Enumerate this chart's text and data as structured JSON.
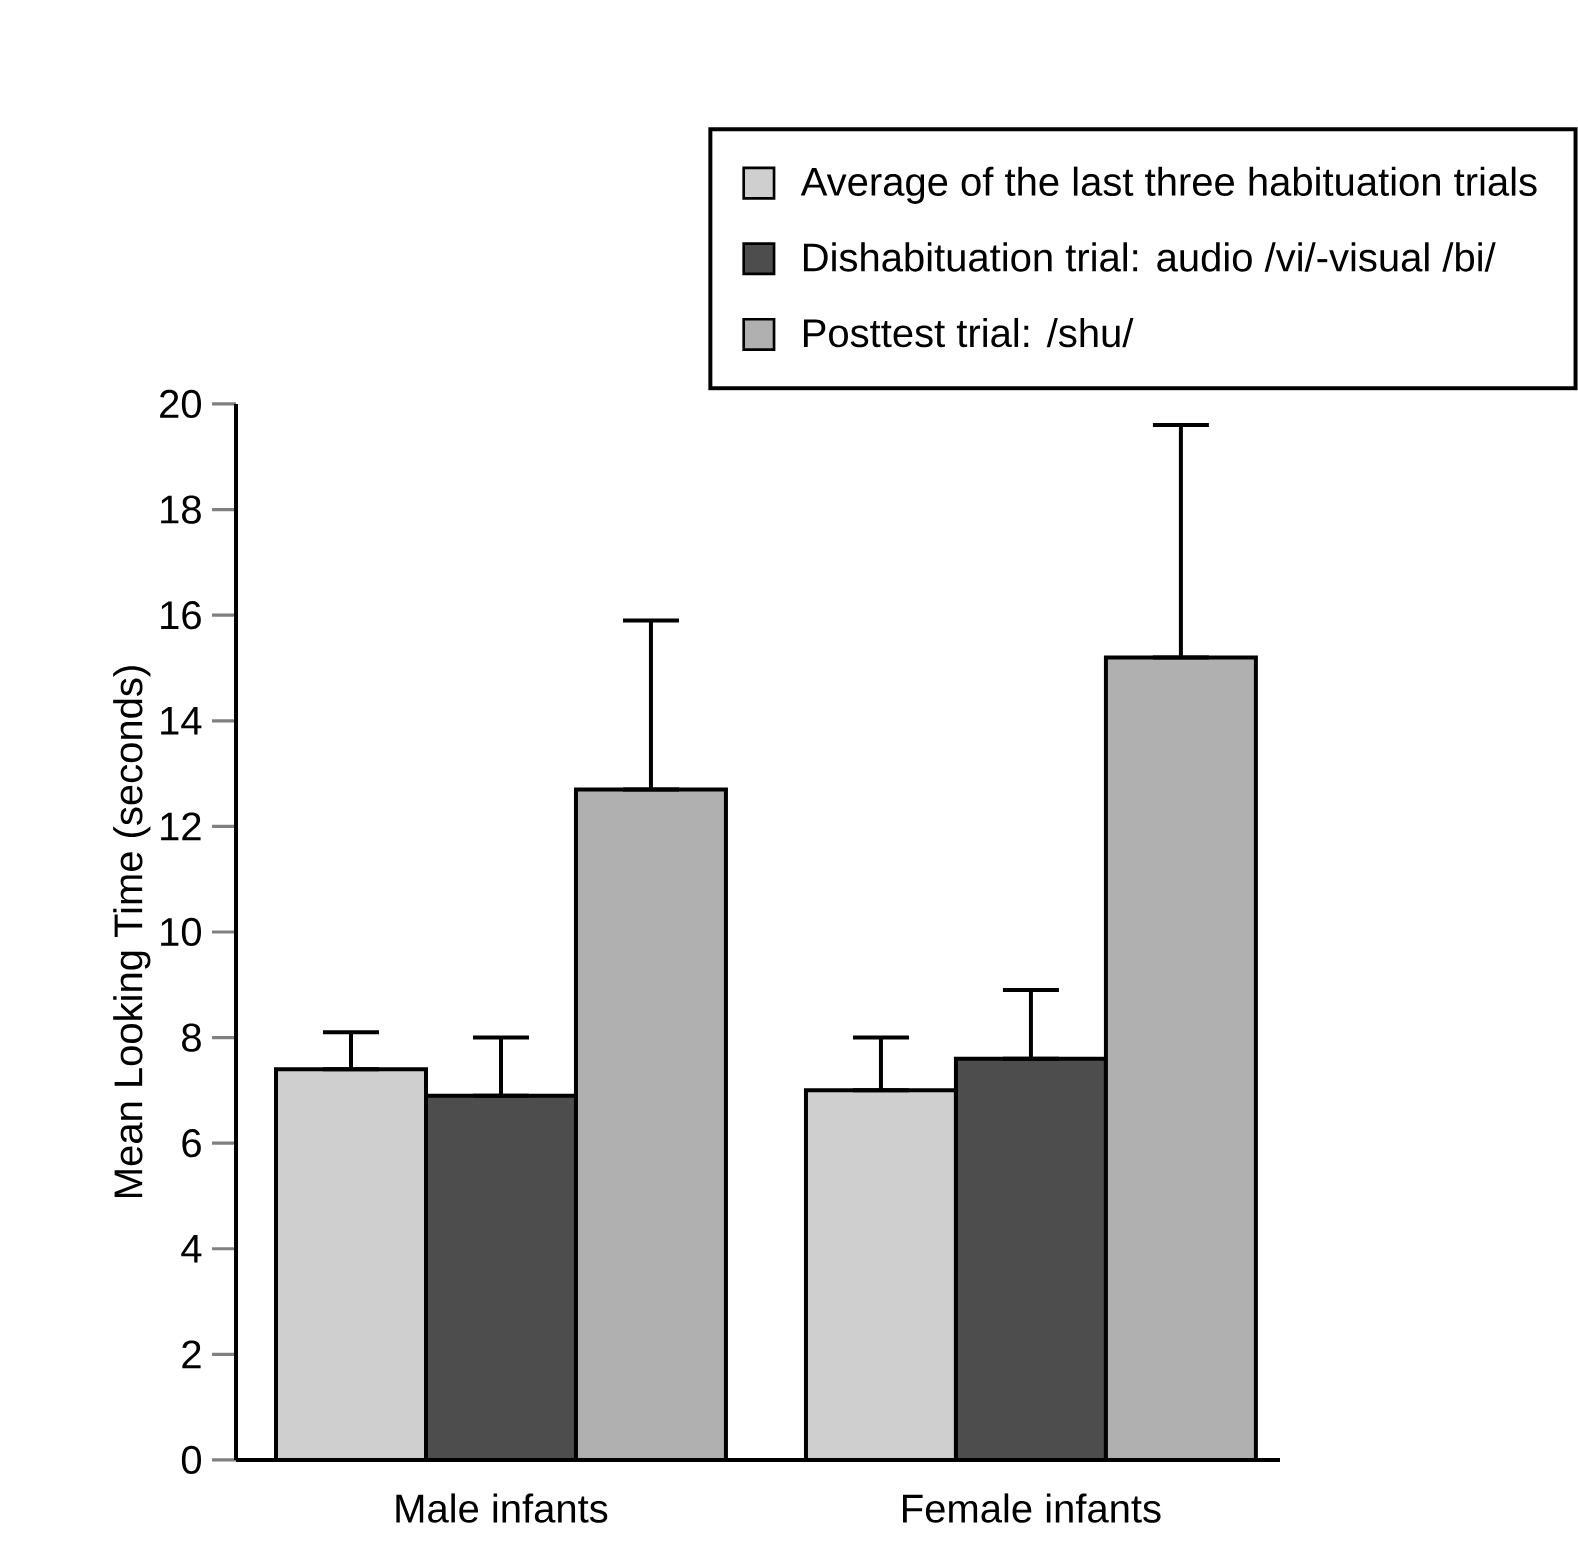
{
  "chart_data": {
    "type": "bar",
    "ylabel": "Mean Looking Time (seconds)",
    "categories": [
      "Male infants",
      "Female infants"
    ],
    "series": [
      {
        "name": "Average of the last three habituation trials",
        "color": "#cfcfcf",
        "values": [
          7.4,
          7.0
        ],
        "errors": [
          [
            7.4,
            8.1
          ],
          [
            7.0,
            8.0
          ]
        ]
      },
      {
        "name": "Dishabituation trial: audio /vi/-visual /bi/",
        "color": "#4d4d4d",
        "values": [
          6.9,
          7.6
        ],
        "errors": [
          [
            6.9,
            8.0
          ],
          [
            7.6,
            8.9
          ]
        ]
      },
      {
        "name": "Posttest trial: /shu/",
        "color": "#b0b0b0",
        "values": [
          12.7,
          15.2
        ],
        "errors": [
          [
            12.7,
            15.9
          ],
          [
            15.2,
            19.6
          ]
        ]
      }
    ],
    "ylim": [
      0,
      20
    ],
    "yticks": [
      0,
      2,
      4,
      6,
      8,
      10,
      12,
      14,
      16,
      18,
      20
    ],
    "grid": false,
    "legend": "top right"
  }
}
